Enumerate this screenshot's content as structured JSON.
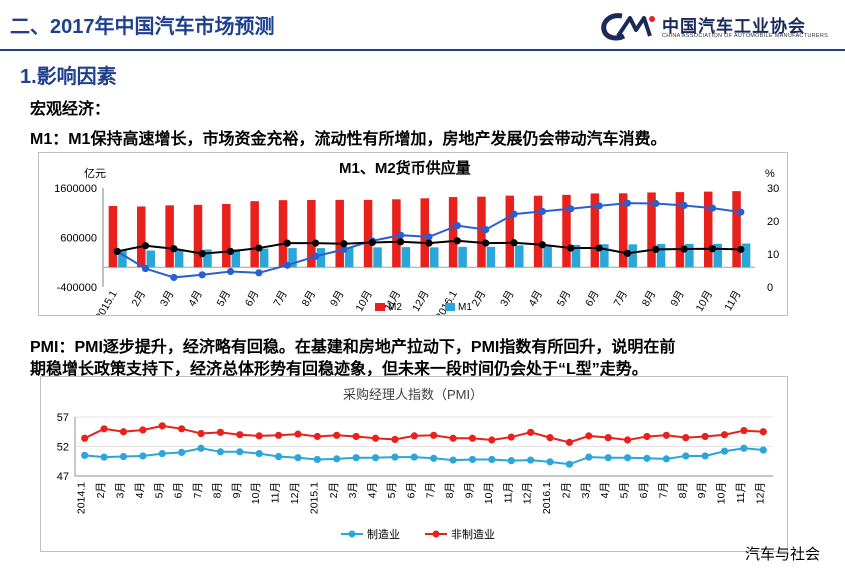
{
  "header": {
    "title": "二、2017年中国汽车市场预测",
    "logo_name": "中国汽车工业协会",
    "logo_sub": "CHINA ASSOCIATION OF AUTOMOBILE MANUFACTURERS"
  },
  "section": {
    "title": "1.影响因素",
    "macro_label": "宏观经济：",
    "m1_text": "M1：M1保持高速增长，市场资金充裕，流动性有所增加，房地产发展仍会带动汽车消费。",
    "pmi_text_line1": "PMI：PMI逐步提升，经济略有回稳。在基建和房地产拉动下，PMI指数有所回升，说明在前",
    "pmi_text_line2": "期稳增长政策支持下，经济总体形势有回稳迹象，但未来一段时间仍会处于“L型”走势。"
  },
  "watermark": "汽车与社会",
  "colors": {
    "brand_blue": "#1f3f8f",
    "m2_bar": "#e8211d",
    "m1_bar": "#2aa6d9",
    "m1_growth_line": "#2b5fd1",
    "m2_growth_line": "#000000",
    "pmi_manufacturing": "#2aa6d9",
    "pmi_non_manufacturing": "#e8211d"
  },
  "chart_data": [
    {
      "type": "bar",
      "title": "M1、M2货币供应量",
      "ylabel_left": "亿元",
      "ylabel_right": "%",
      "ylim_left": [
        -400000,
        1600000
      ],
      "yticks_left": [
        "1600000",
        "600000",
        "-400000"
      ],
      "ylim_right": [
        0,
        30
      ],
      "yticks_right": [
        "30",
        "20",
        "10",
        "0"
      ],
      "categories": [
        "2015.1",
        "2月",
        "3月",
        "4月",
        "5月",
        "6月",
        "7月",
        "8月",
        "9月",
        "10月",
        "11月",
        "12月",
        "2016.1",
        "2月",
        "3月",
        "4月",
        "5月",
        "6月",
        "7月",
        "8月",
        "9月",
        "10月",
        "11月"
      ],
      "series": [
        {
          "name": "M2",
          "kind": "bar",
          "axis": "left",
          "values": [
            1236000,
            1227000,
            1250000,
            1260000,
            1276000,
            1334000,
            1354000,
            1358000,
            1360000,
            1360000,
            1372000,
            1392000,
            1417000,
            1425000,
            1446000,
            1445000,
            1461000,
            1490000,
            1493000,
            1510000,
            1517000,
            1527000,
            1537000
          ]
        },
        {
          "name": "M1",
          "kind": "bar",
          "axis": "left",
          "values": [
            348000,
            337000,
            356000,
            358000,
            361000,
            376000,
            386000,
            386000,
            397000,
            401000,
            406000,
            401000,
            411000,
            411000,
            441000,
            443000,
            451000,
            465000,
            462000,
            468000,
            472000,
            474000,
            478000
          ]
        },
        {
          "kind": "line",
          "axis": "right",
          "values": [
            10.8,
            5.6,
            2.9,
            3.7,
            4.7,
            4.3,
            6.6,
            9.3,
            11.4,
            14.0,
            15.7,
            15.2,
            18.6,
            17.4,
            22.1,
            22.9,
            23.7,
            24.6,
            25.4,
            25.3,
            24.7,
            23.9,
            22.7
          ]
        },
        {
          "kind": "line",
          "axis": "right",
          "values": [
            10.8,
            12.5,
            11.6,
            10.1,
            10.8,
            11.8,
            13.3,
            13.3,
            13.1,
            13.5,
            13.7,
            13.3,
            14.0,
            13.3,
            13.4,
            12.8,
            11.8,
            11.8,
            10.2,
            11.4,
            11.5,
            11.6,
            11.4
          ]
        }
      ],
      "legend": [
        "M2",
        "M1"
      ],
      "legend_placement": "bottom"
    },
    {
      "type": "line",
      "title": "采购经理人指数（PMI）",
      "ylim": [
        47,
        57
      ],
      "yticks": [
        "57",
        "52",
        "47"
      ],
      "categories": [
        "2014.1",
        "2月",
        "3月",
        "4月",
        "5月",
        "6月",
        "7月",
        "8月",
        "9月",
        "10月",
        "11月",
        "12月",
        "2015.1",
        "2月",
        "3月",
        "4月",
        "5月",
        "6月",
        "7月",
        "8月",
        "9月",
        "10月",
        "11月",
        "12月",
        "2016.1",
        "2月",
        "3月",
        "4月",
        "5月",
        "6月",
        "7月",
        "8月",
        "9月",
        "10月",
        "11月",
        "12月"
      ],
      "series": [
        {
          "name": "制造业",
          "values": [
            50.5,
            50.2,
            50.3,
            50.4,
            50.8,
            51.0,
            51.7,
            51.1,
            51.1,
            50.8,
            50.3,
            50.1,
            49.8,
            49.9,
            50.1,
            50.1,
            50.2,
            50.2,
            50.0,
            49.7,
            49.8,
            49.8,
            49.6,
            49.7,
            49.4,
            49.0,
            50.2,
            50.1,
            50.1,
            50.0,
            49.9,
            50.4,
            50.4,
            51.2,
            51.7,
            51.4
          ]
        },
        {
          "name": "非制造业",
          "values": [
            53.4,
            55.0,
            54.5,
            54.8,
            55.5,
            55.0,
            54.2,
            54.4,
            54.0,
            53.8,
            53.9,
            54.1,
            53.7,
            53.9,
            53.7,
            53.4,
            53.2,
            53.8,
            53.9,
            53.4,
            53.4,
            53.1,
            53.6,
            54.4,
            53.5,
            52.7,
            53.8,
            53.5,
            53.1,
            53.7,
            53.9,
            53.5,
            53.7,
            54.0,
            54.7,
            54.5
          ]
        }
      ],
      "legend_placement": "bottom"
    }
  ]
}
